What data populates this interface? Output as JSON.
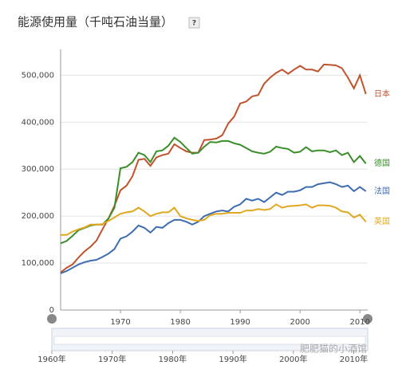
{
  "chart_data": {
    "type": "line",
    "title": "能源使用量（千吨石油当量）",
    "help": "?",
    "x": [
      1960,
      1961,
      1962,
      1963,
      1964,
      1965,
      1966,
      1967,
      1968,
      1969,
      1970,
      1971,
      1972,
      1973,
      1974,
      1975,
      1976,
      1977,
      1978,
      1979,
      1980,
      1981,
      1982,
      1983,
      1984,
      1985,
      1986,
      1987,
      1988,
      1989,
      1990,
      1991,
      1992,
      1993,
      1994,
      1995,
      1996,
      1997,
      1998,
      1999,
      2000,
      2001,
      2002,
      2003,
      2004,
      2005,
      2006,
      2007,
      2008,
      2009,
      2010,
      2011
    ],
    "series": [
      {
        "name": "日本",
        "color": "#c0532b",
        "values": [
          80000,
          90000,
          97000,
          112000,
          125000,
          135000,
          148000,
          172000,
          195000,
          222000,
          255000,
          265000,
          285000,
          320000,
          322000,
          307000,
          325000,
          330000,
          333000,
          353000,
          345000,
          338000,
          335000,
          335000,
          362000,
          363000,
          365000,
          372000,
          397000,
          412000,
          440000,
          444000,
          455000,
          458000,
          482000,
          495000,
          505000,
          512000,
          503000,
          512000,
          520000,
          512000,
          512000,
          508000,
          523000,
          522000,
          521000,
          515000,
          495000,
          472000,
          500000,
          460000
        ]
      },
      {
        "name": "德国",
        "color": "#3a8e2a",
        "values": [
          142000,
          147000,
          158000,
          170000,
          175000,
          180000,
          182000,
          182000,
          195000,
          218000,
          302000,
          305000,
          315000,
          335000,
          330000,
          315000,
          338000,
          340000,
          350000,
          367000,
          358000,
          345000,
          333000,
          335000,
          348000,
          358000,
          357000,
          360000,
          360000,
          355000,
          352000,
          345000,
          338000,
          335000,
          333000,
          337000,
          348000,
          345000,
          343000,
          335000,
          337000,
          347000,
          338000,
          340000,
          340000,
          336000,
          340000,
          330000,
          335000,
          315000,
          328000,
          312000
        ]
      },
      {
        "name": "法国",
        "color": "#3d6db0",
        "values": [
          78000,
          83000,
          90000,
          97000,
          102000,
          105000,
          107000,
          113000,
          120000,
          130000,
          152000,
          157000,
          167000,
          180000,
          175000,
          165000,
          177000,
          175000,
          185000,
          192000,
          192000,
          188000,
          182000,
          188000,
          200000,
          205000,
          210000,
          212000,
          210000,
          220000,
          225000,
          237000,
          233000,
          237000,
          230000,
          240000,
          250000,
          245000,
          252000,
          252000,
          255000,
          262000,
          262000,
          268000,
          270000,
          272000,
          268000,
          262000,
          265000,
          253000,
          262000,
          253000
        ]
      },
      {
        "name": "英国",
        "color": "#e0a820",
        "values": [
          160000,
          160000,
          167000,
          172000,
          176000,
          182000,
          182000,
          183000,
          190000,
          197000,
          205000,
          208000,
          210000,
          218000,
          210000,
          200000,
          205000,
          208000,
          208000,
          218000,
          200000,
          195000,
          192000,
          190000,
          192000,
          202000,
          205000,
          205000,
          207000,
          207000,
          207000,
          212000,
          212000,
          215000,
          213000,
          215000,
          225000,
          218000,
          221000,
          222000,
          223000,
          225000,
          218000,
          223000,
          223000,
          222000,
          218000,
          210000,
          208000,
          197000,
          203000,
          188000
        ]
      }
    ],
    "xlim": [
      1960,
      2011.3
    ],
    "xticks": [
      1970,
      1980,
      1990,
      2000,
      2010
    ],
    "ylim": [
      0,
      555000
    ],
    "yticks": [
      0,
      {
        "value": 100000,
        "label": "100,000"
      },
      {
        "value": 200000,
        "label": "200,000"
      },
      {
        "value": 300000,
        "label": "300,000"
      },
      {
        "value": 400000,
        "label": "400,000"
      },
      {
        "value": 500000,
        "label": "500,000"
      }
    ],
    "grid": true,
    "timeline": [
      "1960年",
      "1970年",
      "1980年",
      "1990年",
      "2000年",
      "2010年"
    ],
    "watermark": "肥肥猫的小酒馆"
  }
}
